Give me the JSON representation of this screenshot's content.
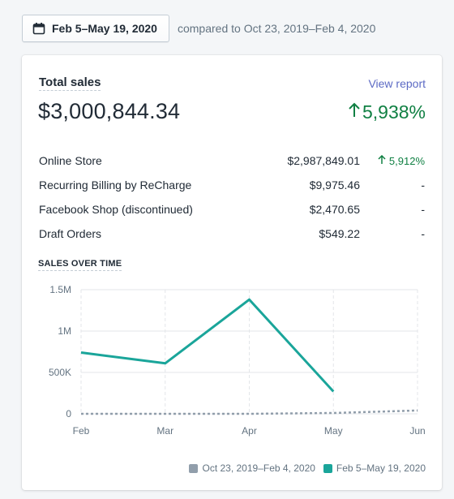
{
  "date_range": {
    "button_label": "Feb 5–May 19, 2020",
    "compare_text": "compared to Oct 23, 2019–Feb 4, 2020"
  },
  "card": {
    "title": "Total sales",
    "view_report": "View report",
    "total_value": "$3,000,844.34",
    "total_change": "5,938%",
    "rows": [
      {
        "name": "Online Store",
        "amount": "$2,987,849.01",
        "change": "5,912%",
        "change_up": true
      },
      {
        "name": "Recurring Billing by ReCharge",
        "amount": "$9,975.46",
        "change": "-",
        "change_up": false
      },
      {
        "name": "Facebook Shop (discontinued)",
        "amount": "$2,470.65",
        "change": "-",
        "change_up": false
      },
      {
        "name": "Draft Orders",
        "amount": "$549.22",
        "change": "-",
        "change_up": false
      }
    ],
    "chart_title": "SALES OVER TIME"
  },
  "colors": {
    "current": "#1aa59a",
    "previous": "#919eab",
    "positive": "#108043",
    "link": "#5c6ac4"
  },
  "chart_data": {
    "type": "line",
    "title": "SALES OVER TIME",
    "categories": [
      "Feb",
      "Mar",
      "Apr",
      "May",
      "Jun"
    ],
    "y_ticks": [
      "0",
      "500K",
      "1M",
      "1.5M"
    ],
    "ylim": [
      0,
      1500000
    ],
    "series": [
      {
        "name": "Oct 23, 2019–Feb 4, 2020",
        "color": "#919eab",
        "style": "dashed",
        "x": [
          0,
          1,
          2,
          3,
          4
        ],
        "values": [
          0,
          0,
          0,
          10000,
          40000
        ]
      },
      {
        "name": "Feb 5–May 19, 2020",
        "color": "#1aa59a",
        "style": "solid",
        "x": [
          0,
          1,
          2,
          3
        ],
        "values": [
          740000,
          610000,
          1380000,
          270000
        ]
      }
    ],
    "grid": true,
    "legend": "bottom-right"
  }
}
